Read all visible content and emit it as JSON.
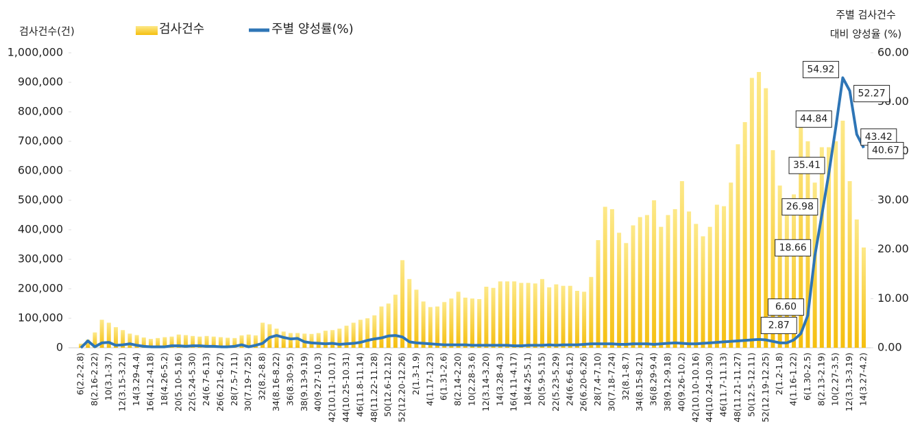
{
  "chart_data": {
    "type": "bar-line",
    "y_axis_title": "검사건수(건)",
    "y2_axis_title": [
      "주별 검사건수",
      "대비 양성율 (%)"
    ],
    "categories": [
      "6(2.2-2.8)",
      null,
      "8(2.16-2.22)",
      null,
      "10(3.1-3.7)",
      null,
      "12(3.15-3.21)",
      null,
      "14(3.29-4.4)",
      null,
      "16(4.12-4.18)",
      null,
      "18(4.26-5.2)",
      null,
      "20(5.10-5.16)",
      null,
      "22(5.24-5.30)",
      null,
      "24(6.7-6.13)",
      null,
      "26(6.21-6.27)",
      null,
      "28(7.5-7.11)",
      null,
      "30(7.19-7.25)",
      null,
      "32(8.2-8.8)",
      null,
      "34(8.16-8.22)",
      null,
      "36(8.30-9.5)",
      null,
      "38(9.13-9.19)",
      null,
      "40(9.27-10.3)",
      null,
      "42(10.11-10.17)",
      null,
      "44(10.25-10.31)",
      null,
      "46(11.8-11.14)",
      null,
      "48(11.22-11.28)",
      null,
      "50(12.6-12.12)",
      null,
      "52(12.20-12.26)",
      null,
      "2(1.3-1.9)",
      null,
      "4(1.17-1.23)",
      null,
      "6(1.31-2.6)",
      null,
      "8(2.14-2.20)",
      null,
      "10(2.28-3.6)",
      null,
      "12(3.14-3.20)",
      null,
      "14(3.28-4.3)",
      null,
      "16(4.11-4.17)",
      null,
      "18(4.25-5.1)",
      null,
      "20(5.9-5.15)",
      null,
      "22(5.23-5.29)",
      null,
      "24(6.6-6.12)",
      null,
      "26(6.20-6.26)",
      null,
      "28(7.4-7.10)",
      null,
      "30(7.18-7.24)",
      null,
      "32(8.1-8.7)",
      null,
      "34(8.15-8.21)",
      null,
      "36(8.29-9.4)",
      null,
      "38(9.12-9.18)",
      null,
      "40(9.26-10.2)",
      null,
      "42(10.10-10.16)",
      null,
      "44(10.24-10.30)",
      null,
      "46(11.7-11.13)",
      null,
      "48(11.21-11.27)",
      null,
      "50(12.5-12.11)",
      null,
      "52(12.19-12.25)",
      null,
      "2(1.2-1.8)",
      null,
      "4(1.16-1.22)",
      null,
      "6(1.30-2.5)",
      null,
      "8(2.13-2.19)",
      null,
      "10(2.27-3.5)",
      null,
      "12(3.13-3.19)",
      null,
      "14(3.27-4.2)"
    ],
    "series": [
      {
        "name": "검사건수",
        "color": "#f5bf0f",
        "values": [
          14000,
          28000,
          52000,
          95000,
          85000,
          70000,
          60000,
          48000,
          43000,
          35000,
          30000,
          33000,
          36000,
          38000,
          45000,
          43000,
          40000,
          38000,
          40000,
          38000,
          36000,
          34000,
          33000,
          42000,
          45000,
          42000,
          85000,
          80000,
          65000,
          55000,
          50000,
          50000,
          48000,
          47000,
          50000,
          58000,
          60000,
          65000,
          75000,
          85000,
          95000,
          100000,
          110000,
          140000,
          150000,
          180000,
          297000,
          233000,
          197000,
          157000,
          138000,
          140000,
          155000,
          167000,
          190000,
          170000,
          167000,
          165000,
          207000,
          203000,
          225000,
          225000,
          225000,
          220000,
          220000,
          218000,
          233000,
          205000,
          215000,
          210000,
          210000,
          193000,
          190000,
          240000,
          365000,
          478000,
          470000,
          390000,
          355000,
          415000,
          443000,
          450000,
          500000,
          410000,
          450000,
          470000,
          565000,
          462000,
          420000,
          378000,
          410000,
          485000,
          480000,
          560000,
          690000,
          765000,
          915000,
          935000,
          880000,
          670000,
          550000,
          478000,
          520000,
          775000,
          700000,
          560000,
          680000,
          680000,
          700000,
          770000,
          565000,
          435000,
          340000
        ]
      },
      {
        "name": "주별 양성률(%)",
        "color": "#2e75b6",
        "axis": "y2",
        "values": [
          0.0,
          1.4,
          0.2,
          1.0,
          1.1,
          0.5,
          0.6,
          0.8,
          0.5,
          0.3,
          0.2,
          0.2,
          0.2,
          0.4,
          0.4,
          0.3,
          0.4,
          0.4,
          0.3,
          0.3,
          0.2,
          0.2,
          0.3,
          0.6,
          0.2,
          0.5,
          0.9,
          2.1,
          2.5,
          2.1,
          1.8,
          1.9,
          1.2,
          1.0,
          0.9,
          0.8,
          0.9,
          0.7,
          0.8,
          0.9,
          1.1,
          1.5,
          1.8,
          2.0,
          2.4,
          2.5,
          2.2,
          1.2,
          1.0,
          0.9,
          0.8,
          0.7,
          0.6,
          0.6,
          0.6,
          0.6,
          0.5,
          0.5,
          0.5,
          0.5,
          0.5,
          0.5,
          0.4,
          0.4,
          0.5,
          0.5,
          0.5,
          0.6,
          0.5,
          0.6,
          0.6,
          0.6,
          0.7,
          0.8,
          0.8,
          0.8,
          0.8,
          0.7,
          0.7,
          0.8,
          0.8,
          0.8,
          0.7,
          0.8,
          0.9,
          1.0,
          0.9,
          0.8,
          0.8,
          0.9,
          1.0,
          1.1,
          1.2,
          1.3,
          1.4,
          1.5,
          1.6,
          1.7,
          1.6,
          1.3,
          1.0,
          1.0,
          1.6,
          2.87,
          6.6,
          18.66,
          26.98,
          35.41,
          44.84,
          54.92,
          52.27,
          43.42,
          40.67
        ],
        "value_labels": [
          null,
          null,
          null,
          null,
          null,
          null,
          null,
          null,
          null,
          null,
          null,
          null,
          null,
          null,
          null,
          null,
          null,
          null,
          null,
          null,
          null,
          null,
          null,
          null,
          null,
          null,
          null,
          null,
          null,
          null,
          null,
          null,
          null,
          null,
          null,
          null,
          null,
          null,
          null,
          null,
          null,
          null,
          null,
          null,
          null,
          null,
          null,
          null,
          null,
          null,
          null,
          null,
          null,
          null,
          null,
          null,
          null,
          null,
          null,
          null,
          null,
          null,
          null,
          null,
          null,
          null,
          null,
          null,
          null,
          null,
          null,
          null,
          null,
          null,
          null,
          null,
          null,
          null,
          null,
          null,
          null,
          null,
          null,
          null,
          null,
          null,
          null,
          null,
          null,
          null,
          null,
          null,
          null,
          null,
          null,
          null,
          null,
          null,
          null,
          null,
          null,
          null,
          null,
          "2.87",
          "6.60",
          "18.66",
          "26.98",
          "35.41",
          "44.84",
          "54.92",
          "52.27",
          "43.42",
          "40.67"
        ]
      }
    ],
    "ylim": [
      0,
      1000000
    ],
    "yticks": [
      0,
      {
        "value": 100000,
        "label": "100,000"
      },
      {
        "value": 200000,
        "label": "200,000"
      },
      {
        "value": 300000,
        "label": "300,000"
      },
      {
        "value": 400000,
        "label": "400,000"
      },
      {
        "value": 500000,
        "label": "500,000"
      },
      {
        "value": 600000,
        "label": "600,000"
      },
      {
        "value": 700000,
        "label": "700,000"
      },
      {
        "value": 800000,
        "label": "800,000"
      },
      {
        "value": 900000,
        "label": "900,000"
      },
      {
        "value": 1000000,
        "label": "1,000,000"
      }
    ],
    "y2lim": [
      0,
      60
    ],
    "y2ticks": [
      {
        "value": 0,
        "label": "0.00"
      },
      {
        "value": 10,
        "label": "10.00"
      },
      {
        "value": 20,
        "label": "20.00"
      },
      {
        "value": 30,
        "label": "30.00"
      },
      {
        "value": 40,
        "label": "40.00"
      },
      {
        "value": 50,
        "label": "50.00"
      },
      {
        "value": 60,
        "label": "60.00"
      }
    ],
    "legend": "top"
  }
}
